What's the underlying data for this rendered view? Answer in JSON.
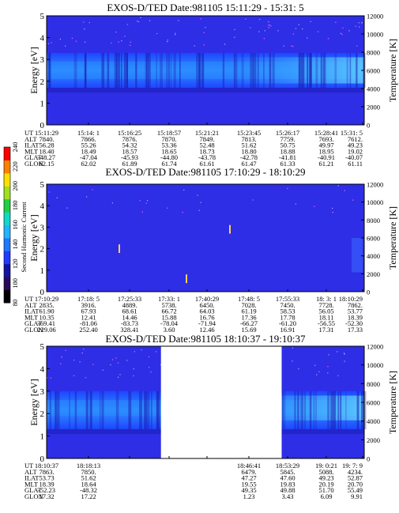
{
  "colors": {
    "background_fill": "#2e2ee6",
    "band_fill": "#1e5cff",
    "band_core": "#2a8cff",
    "cold_fill": "#1a1ab0",
    "axis": "#000000"
  },
  "colorbar": {
    "label": "Second Harmonic Current",
    "ticks": [
      "80",
      "100",
      "120",
      "140",
      "160",
      "180",
      "200",
      "220",
      "240"
    ],
    "colors": [
      "#000000",
      "#2a0a5a",
      "#1414a0",
      "#1f3cff",
      "#1f78ff",
      "#22b4ff",
      "#12d8c8",
      "#20d040",
      "#a0e020",
      "#ffe000",
      "#ff8000",
      "#ff0000"
    ]
  },
  "chart_data": [
    {
      "type": "heatmap",
      "title": "EXOS-D/TED   Date:981105   15:11:29 - 15:31: 5",
      "ylabel": "Energy [eV]",
      "y2label": "Temperature [K]",
      "ylim": [
        0,
        5
      ],
      "y2lim": [
        0,
        12000
      ],
      "yticks": [
        "0",
        "1",
        "2",
        "3",
        "4",
        "5"
      ],
      "y2ticks": [
        "0",
        "2000",
        "4000",
        "6000",
        "8000",
        "10000",
        "12000"
      ],
      "row_labels": [
        "UT",
        "ALT",
        "ILAT",
        "MLT",
        "GLAT",
        "GLON"
      ],
      "columns": [
        [
          "15:11:29",
          "7840.",
          "56.28",
          "18.40",
          "-48.27",
          "62.15"
        ],
        [
          "15:14: 1",
          "7866.",
          "55.26",
          "18.49",
          "-47.04",
          "62.02"
        ],
        [
          "15:16:25",
          "7876.",
          "54.32",
          "18.57",
          "-45.93",
          "61.89"
        ],
        [
          "15:18:57",
          "7870.",
          "53.36",
          "18.65",
          "-44.80",
          "61.74"
        ],
        [
          "15:21:21",
          "7849.",
          "52.48",
          "18.73",
          "-43.78",
          "61.61"
        ],
        [
          "15:23:45",
          "7813.",
          "51.62",
          "18.80",
          "-42.78",
          "61.47"
        ],
        [
          "15:26:17",
          "7759.",
          "50.75",
          "18.88",
          "-41.81",
          "61.33"
        ],
        [
          "15:28:41",
          "7693.",
          "49.97",
          "18.95",
          "-40.91",
          "61.21"
        ],
        [
          "15:31: 5",
          "7612.",
          "49.23",
          "19.02",
          "-40.07",
          "61.11"
        ]
      ],
      "band": {
        "energy_low": 1.7,
        "energy_high": 3.3,
        "core_low": 2.1,
        "core_high": 2.9
      },
      "data_gaps": []
    },
    {
      "type": "heatmap",
      "title": "EXOS-D/TED   Date:981105   17:10:29 - 18:10:29",
      "ylabel": "Energy [eV]",
      "y2label": "Temperature [K]",
      "ylim": [
        0,
        5
      ],
      "y2lim": [
        0,
        12000
      ],
      "yticks": [
        "0",
        "1",
        "2",
        "3",
        "4",
        "5"
      ],
      "y2ticks": [
        "0",
        "2000",
        "4000",
        "6000",
        "8000",
        "10000",
        "12000"
      ],
      "row_labels": [
        "UT",
        "ALT",
        "ILAT",
        "MLT",
        "GLAT",
        "GLON"
      ],
      "columns": [
        [
          "17:10:29",
          "2835.",
          "61.90",
          "10.35",
          "-69.41",
          "229.06"
        ],
        [
          "17:18: 5",
          "3916.",
          "67.93",
          "12.41",
          "-81.06",
          "252.40"
        ],
        [
          "17:25:33",
          "4889.",
          "68.61",
          "14.46",
          "-83.73",
          "328.41"
        ],
        [
          "17:33: 1",
          "5738.",
          "66.72",
          "15.88",
          "-78.04",
          "3.60"
        ],
        [
          "17:40:29",
          "6450.",
          "64.03",
          "16.76",
          "-71.94",
          "12.46"
        ],
        [
          "17:48: 5",
          "7028.",
          "61.19",
          "17.36",
          "-66.27",
          "15.69"
        ],
        [
          "17:55:33",
          "7450.",
          "58.53",
          "17.78",
          "-61.20",
          "16.91"
        ],
        [
          "18: 3: 1",
          "7728.",
          "56.05",
          "18.11",
          "-56.55",
          "17.31"
        ],
        [
          "18:10:29",
          "7862.",
          "53.77",
          "18.39",
          "-52.30",
          "17.33"
        ]
      ],
      "band": null,
      "data_gaps": []
    },
    {
      "type": "heatmap",
      "title": "EXOS-D/TED   Date:981105   18:10:37 - 19:10:37",
      "ylabel": "Energy [eV]",
      "y2label": "Temperature [K]",
      "ylim": [
        0,
        5
      ],
      "y2lim": [
        0,
        12000
      ],
      "yticks": [
        "0",
        "1",
        "2",
        "3",
        "4",
        "5"
      ],
      "y2ticks": [
        "0",
        "2000",
        "4000",
        "6000",
        "8000",
        "10000",
        "12000"
      ],
      "row_labels": [
        "UT",
        "ALT",
        "ILAT",
        "MLT",
        "GLAT",
        "GLON"
      ],
      "columns": [
        [
          "18:10:37",
          "7863.",
          "53.73",
          "18.39",
          "-52.23",
          "17.32"
        ],
        [
          "18:18:13",
          "7850.",
          "51.62",
          "18.64",
          "-48.32",
          "17.22"
        ],
        [
          "",
          "",
          "",
          "",
          "",
          ""
        ],
        [
          "",
          "",
          "",
          "",
          "",
          ""
        ],
        [
          "",
          "",
          "",
          "",
          "",
          ""
        ],
        [
          "18:46:41",
          "6479.",
          "47.27",
          "19.55",
          "49.35",
          "1.23"
        ],
        [
          "18:53:29",
          "5845.",
          "47.60",
          "19.83",
          "49.88",
          "3.43"
        ],
        [
          "19: 0:21",
          "5088.",
          "49.23",
          "20.19",
          "51.70",
          "6.09"
        ],
        [
          "19: 7: 9",
          "4234.",
          "52.87",
          "20.70",
          "55.49",
          "9.91"
        ]
      ],
      "band": {
        "energy_low": 1.3,
        "energy_high": 3.0,
        "core_low": 1.9,
        "core_high": 2.6
      },
      "data_gaps": [
        [
          0.36,
          0.74
        ]
      ]
    }
  ]
}
